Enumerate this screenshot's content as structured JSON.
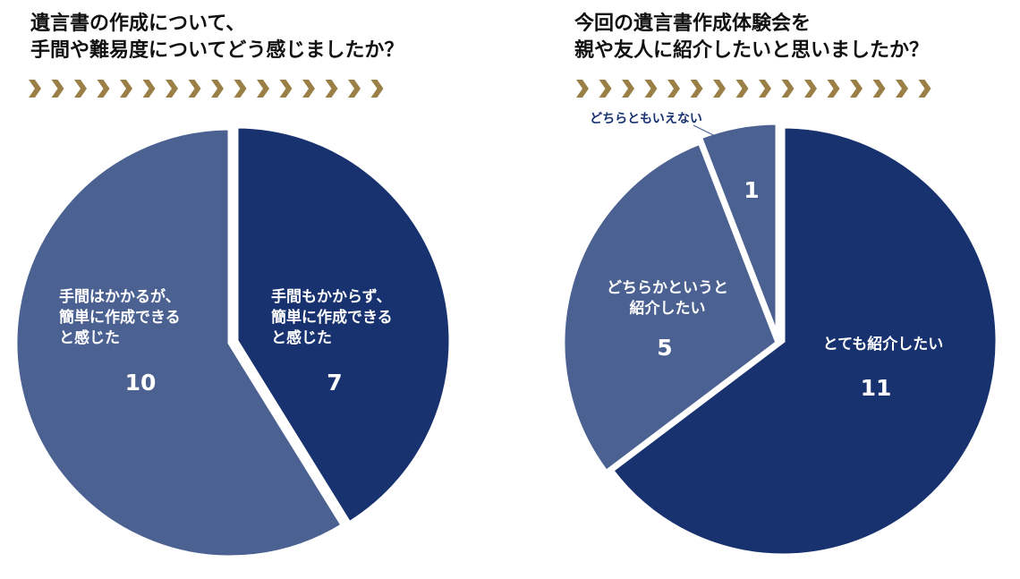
{
  "colors": {
    "dark_navy": "#17326f",
    "slate_blue": "#4b6192",
    "gold": "#9a8046",
    "label_white": "#ffffff",
    "callout_text": "#17326f"
  },
  "chart_data": [
    {
      "type": "pie",
      "title_lines": [
        "遺言書の作成について、",
        "手間や難易度についてどう感じましたか？"
      ],
      "slices": [
        {
          "label_lines": [
            "手間もかからず、",
            "簡単に作成できる",
            "と感じた"
          ],
          "value": 7,
          "value_label": "7",
          "color": "#17326f"
        },
        {
          "label_lines": [
            "手間はかかるが、",
            "簡単に作成できる",
            "と感じた"
          ],
          "value": 10,
          "value_label": "10",
          "color": "#4b6192"
        }
      ],
      "legend": "none",
      "labels_inside": true
    },
    {
      "type": "pie",
      "title_lines": [
        "今回の遺言書作成体験会を",
        "親や友人に紹介したいと思いましたか？"
      ],
      "slices": [
        {
          "label_lines": [
            "とても紹介したい"
          ],
          "value": 11,
          "value_label": "11",
          "color": "#17326f"
        },
        {
          "label_lines": [
            "どちらかというと",
            "紹介したい"
          ],
          "value": 5,
          "value_label": "5",
          "color": "#4b6192"
        },
        {
          "label_lines": [
            "どちらともいえない"
          ],
          "value": 1,
          "value_label": "1",
          "color": "#4b6192",
          "callout": true
        }
      ],
      "legend": "none",
      "labels_inside": true
    }
  ]
}
